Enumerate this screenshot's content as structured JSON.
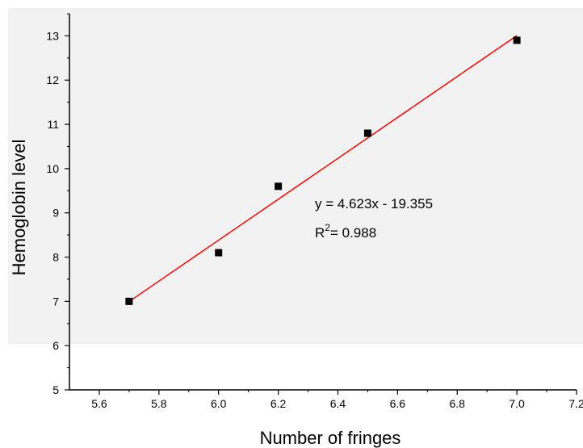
{
  "chart_data": {
    "type": "scatter",
    "title": "",
    "xlabel": "Number of fringes",
    "ylabel": "Hemoglobin level",
    "xlim": [
      5.5,
      7.2
    ],
    "ylim": [
      5,
      13.5
    ],
    "x_ticks": [
      "5.6",
      "5.8",
      "6.0",
      "6.2",
      "6.4",
      "6.6",
      "6.8",
      "7.0",
      "7.2"
    ],
    "y_ticks": [
      "5",
      "6",
      "7",
      "8",
      "9",
      "10",
      "11",
      "12",
      "13"
    ],
    "points": [
      {
        "x": 5.7,
        "y": 7.0
      },
      {
        "x": 6.0,
        "y": 8.1
      },
      {
        "x": 6.2,
        "y": 9.6
      },
      {
        "x": 6.5,
        "y": 10.8
      },
      {
        "x": 7.0,
        "y": 12.9
      }
    ],
    "fit": {
      "slope": 4.623,
      "intercept": -19.355,
      "x_range": [
        5.7,
        7.0
      ],
      "color": "#ff0000",
      "equation_label": "y = 4.623x - 19.355",
      "r2_prefix": "R",
      "r2_sup": "2",
      "r2_value": "= 0.988"
    },
    "marker_color": "#000000",
    "shaded_region_color": "#f2f2f2",
    "grid": false,
    "legend": "none"
  }
}
